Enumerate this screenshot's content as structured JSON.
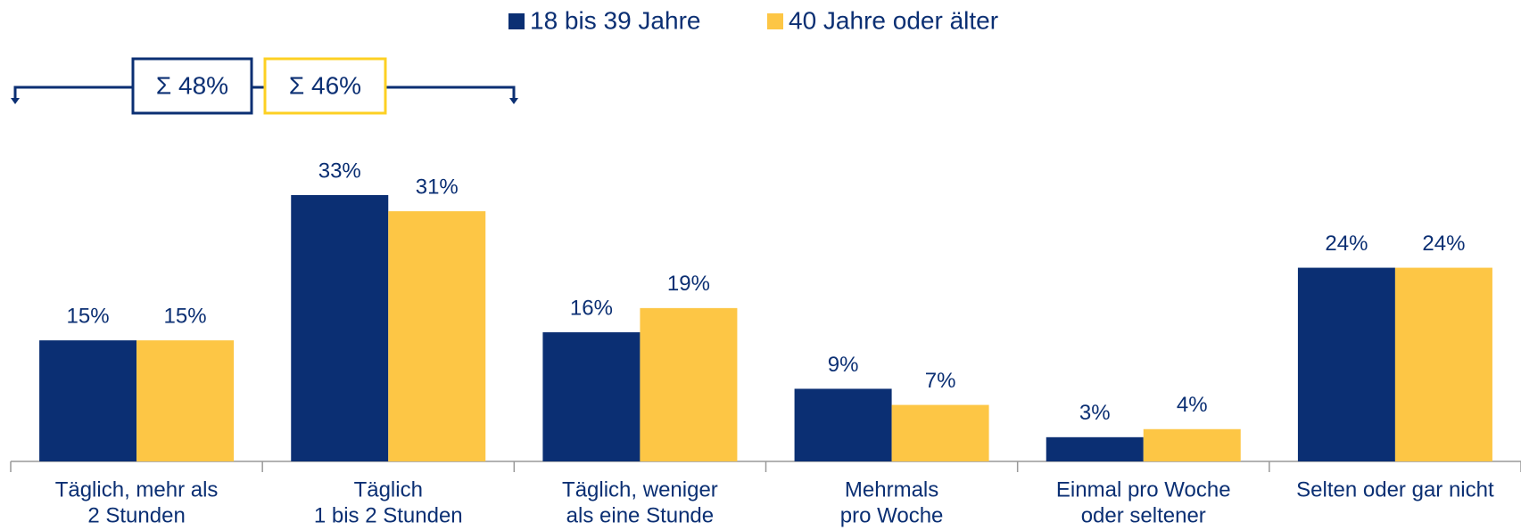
{
  "chart_data": {
    "type": "bar",
    "categories": [
      [
        "Täglich, mehr als",
        "2 Stunden"
      ],
      [
        "Täglich",
        "1 bis 2 Stunden"
      ],
      [
        "Täglich, weniger",
        "als eine Stunde"
      ],
      [
        "Mehrmals",
        "pro Woche"
      ],
      [
        "Einmal pro Woche",
        "oder seltener"
      ],
      [
        "Selten oder gar nicht"
      ]
    ],
    "series": [
      {
        "name": "18 bis 39 Jahre",
        "color": "#0b2f73",
        "values": [
          15,
          33,
          16,
          9,
          3,
          24
        ],
        "value_labels": [
          "15%",
          "33%",
          "16%",
          "9%",
          "3%",
          "24%"
        ]
      },
      {
        "name": "40 Jahre oder älter",
        "color": "#fdc645",
        "values": [
          15,
          31,
          19,
          7,
          4,
          24
        ],
        "value_labels": [
          "15%",
          "31%",
          "19%",
          "7%",
          "4%",
          "24%"
        ]
      }
    ],
    "annotations": [
      {
        "text": "Σ 48%",
        "color": "#0b2f73"
      },
      {
        "text": "Σ 46%",
        "color": "#fdd023"
      }
    ],
    "legend": "top"
  }
}
